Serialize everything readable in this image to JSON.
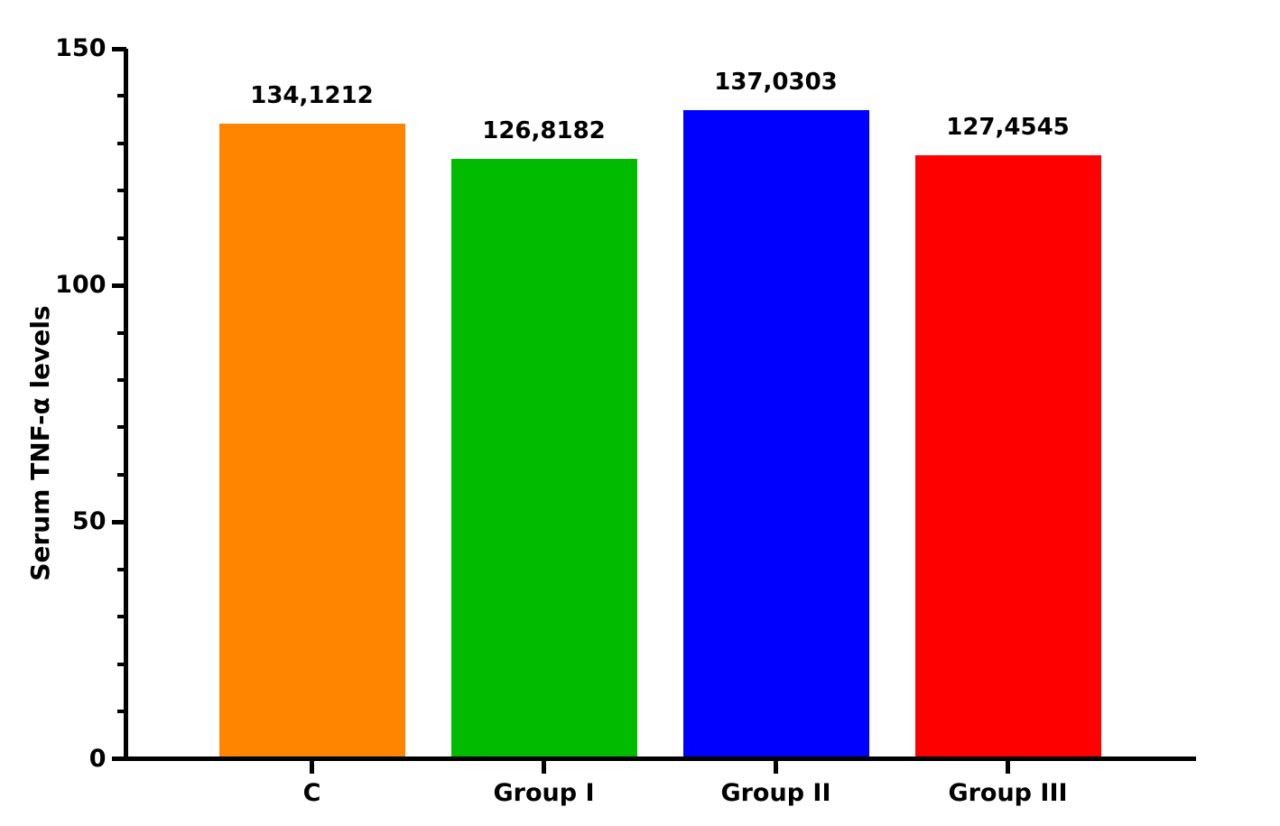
{
  "figure": {
    "background": "#FFFFFF",
    "axis_color": "#000000",
    "text_color": "#000000"
  },
  "chart_data": {
    "type": "bar",
    "categories": [
      "C",
      "Group I",
      "Group II",
      "Group III"
    ],
    "values": [
      134.1212,
      126.8182,
      137.0303,
      127.4545
    ],
    "value_labels": [
      "134,1212",
      "126,8182",
      "137,0303",
      "127,4545"
    ],
    "bar_colors": [
      "#FF8400",
      "#00BB00",
      "#0000FF",
      "#FF0000"
    ],
    "title": "",
    "xlabel": "",
    "ylabel": "Serum TNF-α levels",
    "ylim": [
      0,
      150
    ],
    "y_major_ticks": [
      0,
      50,
      100,
      150
    ],
    "y_major_tick_labels": [
      "0",
      "50",
      "100",
      "150"
    ],
    "y_minor_tick_step": 10,
    "grid": false,
    "legend": "none"
  }
}
